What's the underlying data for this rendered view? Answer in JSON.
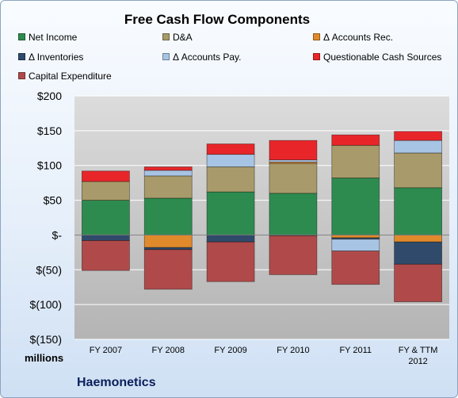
{
  "chart_data": {
    "type": "bar",
    "stacked": true,
    "title": "Free Cash Flow Components",
    "categories": [
      "FY 2007",
      "FY 2008",
      "FY 2009",
      "FY 2010",
      "FY 2011",
      "FY & TTM 2012"
    ],
    "ylim": [
      -150,
      200
    ],
    "yticks": [
      "$200",
      "$150",
      "$100",
      "$50",
      "$-",
      "$(50)",
      "$(100)",
      "$(150)"
    ],
    "ytick_values": [
      200,
      150,
      100,
      50,
      0,
      -50,
      -100,
      -150
    ],
    "grid": true,
    "legend_position": "top",
    "units_label": "millions",
    "series": [
      {
        "name": "Net Income",
        "color": "#2e8b4f",
        "values": [
          50,
          53,
          62,
          60,
          82,
          68
        ]
      },
      {
        "name": "D&A",
        "color": "#a89a6a",
        "values": [
          27,
          32,
          36,
          43,
          47,
          50
        ]
      },
      {
        "name": "Δ Accounts Rec.",
        "color": "#e08a2c",
        "values": [
          0,
          -18,
          0,
          2,
          -4,
          -10
        ]
      },
      {
        "name": "Δ Inventories",
        "color": "#2f4a6b",
        "values": [
          -8,
          -3,
          -10,
          -1,
          -2,
          -32
        ]
      },
      {
        "name": "Δ Accounts Pay.",
        "color": "#a8c4e4",
        "values": [
          0,
          8,
          18,
          3,
          -17,
          18
        ]
      },
      {
        "name": "Questionable Cash Sources",
        "color": "#e8262a",
        "values": [
          15,
          5,
          15,
          28,
          15,
          13
        ]
      },
      {
        "name": "Capital Expenditure",
        "color": "#b04a4a",
        "values": [
          -43,
          -57,
          -57,
          -56,
          -48,
          -54
        ]
      }
    ]
  },
  "company": "Haemonetics"
}
